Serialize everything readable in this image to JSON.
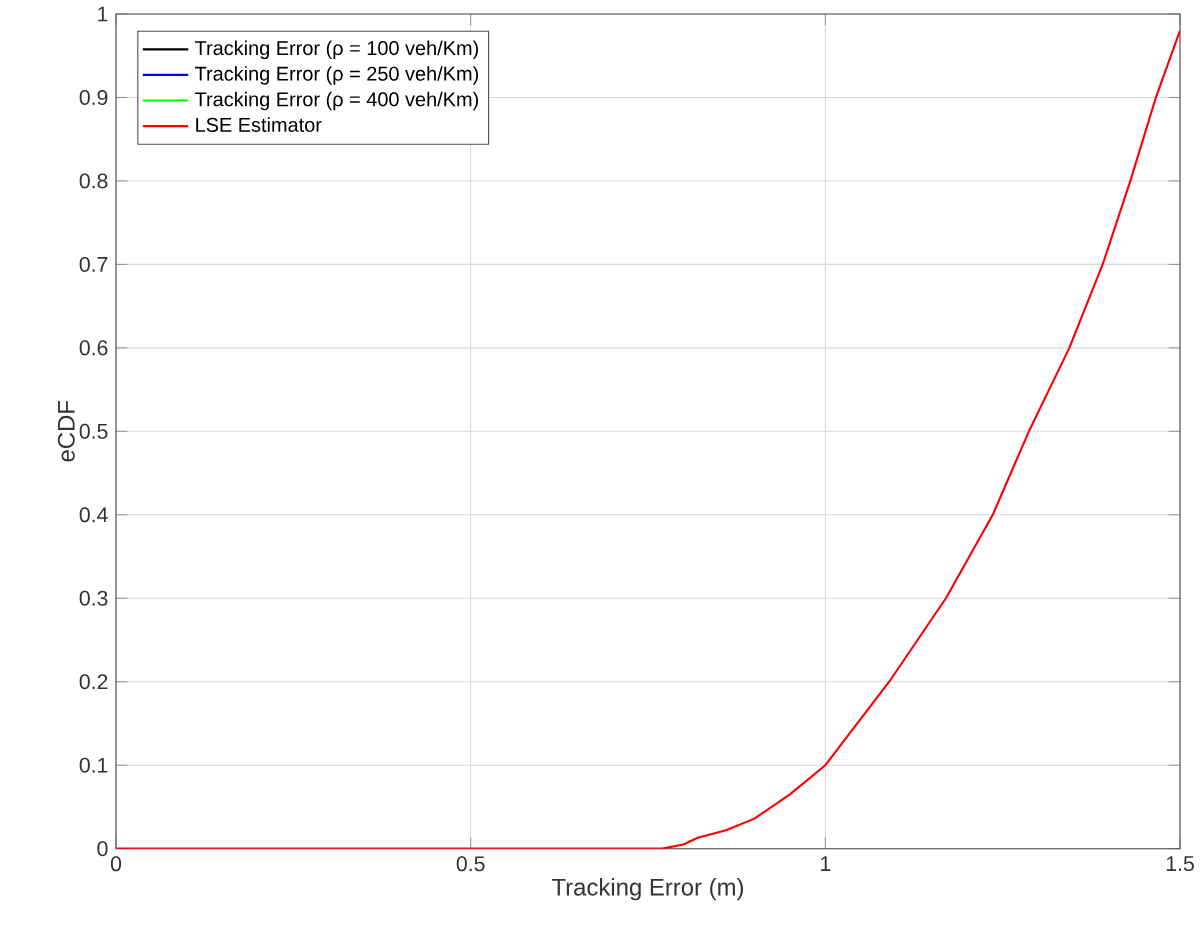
{
  "chart_data": {
    "type": "line",
    "xlabel": "Tracking Error (m)",
    "ylabel": "eCDF",
    "xlim": [
      0,
      1.5
    ],
    "xticks": [
      0,
      0.5,
      1,
      1.5
    ],
    "ylim": [
      0,
      1
    ],
    "yticks": [
      0,
      0.1,
      0.2,
      0.3,
      0.4,
      0.5,
      0.6,
      0.7,
      0.8,
      0.9,
      1
    ],
    "grid": true,
    "legend": "top left",
    "series": [
      {
        "name": "Tracking Error (ρ = 100 veh/Km)",
        "color": "#000000",
        "values": [
          null
        ]
      },
      {
        "name": "Tracking Error (ρ = 250 veh/Km)",
        "color": "#0000ff",
        "values": [
          null
        ]
      },
      {
        "name": "Tracking Error (ρ = 400 veh/Km)",
        "color": "#00ff00",
        "values": [
          null
        ]
      },
      {
        "name": "LSE Estimator",
        "color": "#ff0000",
        "x": [
          0,
          0.77,
          0.8,
          0.82,
          0.86,
          0.9,
          0.95,
          1.0,
          1.09,
          1.17,
          1.236,
          1.287,
          1.344,
          1.391,
          1.43,
          1.466,
          1.5
        ],
        "values": [
          0,
          0,
          0.005,
          0.013,
          0.022,
          0.036,
          0.065,
          0.1,
          0.2,
          0.3,
          0.4,
          0.5,
          0.6,
          0.7,
          0.8,
          0.9,
          0.98
        ]
      }
    ]
  }
}
